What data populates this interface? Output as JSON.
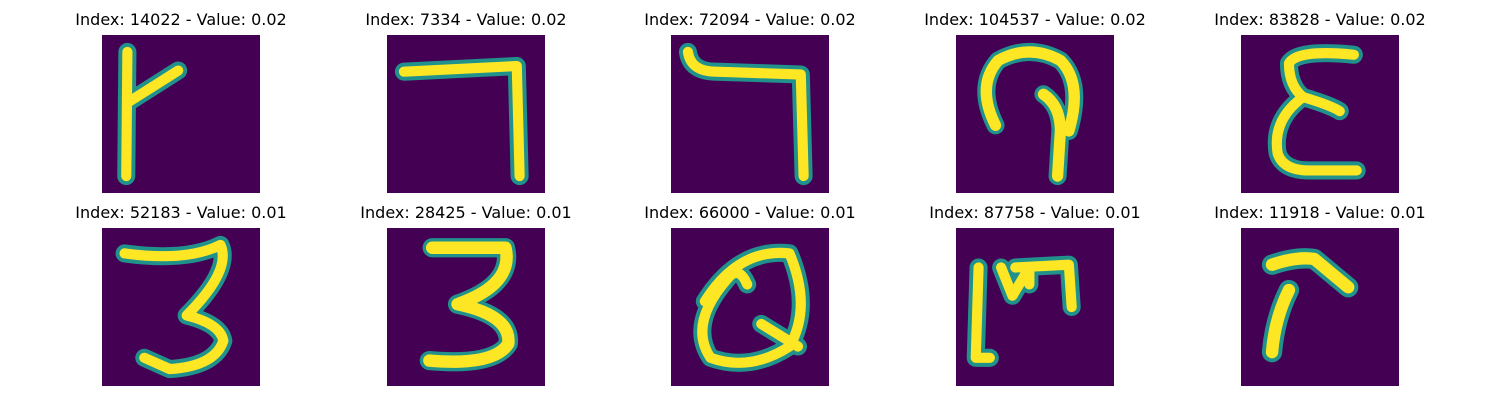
{
  "colors": {
    "background": "#440154",
    "stroke_edge": "#21918c",
    "stroke_core": "#fde725"
  },
  "row1": [
    {
      "title": "Index: 14022 - Value: 0.02",
      "glyph": "gamma"
    },
    {
      "title": "Index: 7334 - Value: 0.02",
      "glyph": "seven-hook"
    },
    {
      "title": "Index: 72094 - Value: 0.02",
      "glyph": "seven-hook-2"
    },
    {
      "title": "Index: 104537 - Value: 0.02",
      "glyph": "p-loop"
    },
    {
      "title": "Index: 83828 - Value: 0.02",
      "glyph": "epsilon"
    }
  ],
  "row2": [
    {
      "title": "Index: 52183 - Value: 0.01",
      "glyph": "three-a"
    },
    {
      "title": "Index: 28425 - Value: 0.01",
      "glyph": "three-b"
    },
    {
      "title": "Index: 66000 - Value: 0.01",
      "glyph": "q-loop"
    },
    {
      "title": "Index: 87758 - Value: 0.01",
      "glyph": "m-open"
    },
    {
      "title": "Index: 11918 - Value: 0.01",
      "glyph": "r-hook"
    }
  ]
}
